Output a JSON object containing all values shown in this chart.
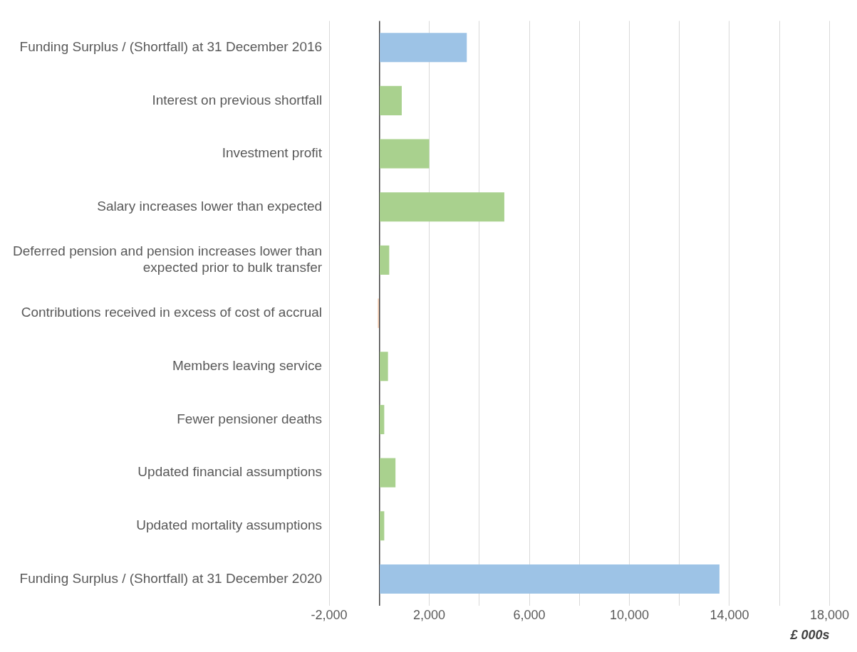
{
  "chart_data": {
    "type": "bar",
    "orientation": "horizontal",
    "xlabel": "£ 000s",
    "categories": [
      "Funding Surplus / (Shortfall) at 31 December 2016",
      "Interest on previous shortfall",
      "Investment profit",
      "Salary increases lower than expected",
      "Deferred pension and pension increases lower than expected prior to bulk transfer",
      "Contributions received in excess of cost of accrual",
      "Members leaving service",
      "Fewer pensioner deaths",
      "Updated financial assumptions",
      "Updated mortality assumptions",
      "Funding Surplus / (Shortfall) at 31 December 2020"
    ],
    "values": [
      3500,
      900,
      2000,
      5000,
      400,
      -50,
      350,
      200,
      650,
      200,
      13600
    ],
    "colors": [
      "#9dc3e6",
      "#a9d18e",
      "#a9d18e",
      "#a9d18e",
      "#a9d18e",
      "#f4b183",
      "#a9d18e",
      "#a9d18e",
      "#a9d18e",
      "#a9d18e",
      "#9dc3e6"
    ],
    "xlim": [
      -2000,
      18000
    ],
    "xticks": [
      {
        "value": -2000,
        "label": "-2,000"
      },
      {
        "value": 0,
        "label": null
      },
      {
        "value": 2000,
        "label": "2,000"
      },
      {
        "value": 4000,
        "label": null
      },
      {
        "value": 6000,
        "label": "6,000"
      },
      {
        "value": 8000,
        "label": null
      },
      {
        "value": 10000,
        "label": "10,000"
      },
      {
        "value": 12000,
        "label": null
      },
      {
        "value": 14000,
        "label": "14,000"
      },
      {
        "value": 16000,
        "label": null
      },
      {
        "value": 18000,
        "label": "18,000"
      }
    ],
    "grid": "x",
    "legend": false
  }
}
